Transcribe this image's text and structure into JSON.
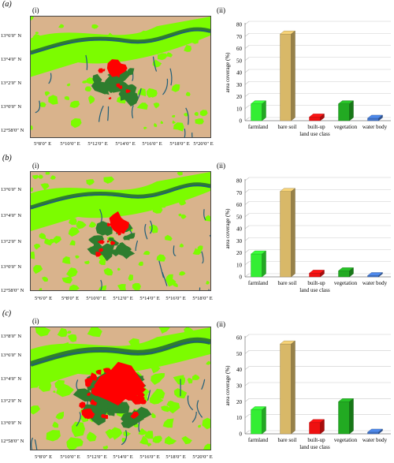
{
  "panels": [
    {
      "label": "(a)",
      "map_label": "(i)",
      "chart_label": "(ii)",
      "lat_labels": [
        "13°6′0″ N",
        "13°4′0″ N",
        "13°2′0″ N",
        "13°0′0″ N",
        "12°58′0″ N"
      ],
      "lon_labels": [
        "5°8′0″ E",
        "5°10′0″ E",
        "5°12′0″ E",
        "5°14′0″ E",
        "5°16′0″ E",
        "5°18′0″ E",
        "5°20′0″ E"
      ]
    },
    {
      "label": "(b)",
      "map_label": "(i)",
      "chart_label": "(ii)",
      "lat_labels": [
        "13°6′0″ N",
        "13°4′0″ N",
        "13°2′0″ N",
        "13°0′0″ N",
        "12°58′0″ N"
      ],
      "lon_labels": [
        "5°6′0″ E",
        "5°8′0″ E",
        "5°10′0″ E",
        "5°12′0″ E",
        "5°14′0″ E",
        "5°16′0″ E",
        "5°18′0″ E"
      ]
    },
    {
      "label": "(c)",
      "map_label": "(i)",
      "chart_label": "(ii)",
      "lat_labels": [
        "13°8′0″ N",
        "13°6′0″ N",
        "13°4′0″ N",
        "13°2′0″ N",
        "13°0′0″ N",
        "12°58′0″ N"
      ],
      "lon_labels": [
        "5°8′0″ E",
        "5°10′0″ E",
        "5°12′0″ E",
        "5°14′0″ E",
        "5°16′0″ E",
        "5°18′0″ E",
        "5°20′0″ E"
      ]
    }
  ],
  "map_colors": {
    "bare_soil": "#d9b38c",
    "farmland": "#7cfc00",
    "vegetation": "#2e7d2e",
    "built_up": "#ff0000",
    "water": "#1f5f7a"
  },
  "chart_data": [
    {
      "type": "bar",
      "categories": [
        "farmland",
        "bare soil",
        "built-up",
        "vegetation",
        "water body"
      ],
      "values": [
        14,
        72,
        3,
        14,
        2
      ],
      "colors": [
        "#33ee33",
        "#d8b868",
        "#ee1111",
        "#22aa22",
        "#4477cc"
      ],
      "xlabel": "land use class",
      "ylabel": "area coverage (%)",
      "ylim": [
        0,
        80
      ],
      "yticks": [
        0,
        10,
        20,
        30,
        40,
        50,
        60,
        70,
        80
      ]
    },
    {
      "type": "bar",
      "categories": [
        "farmland",
        "bare soil",
        "built-up",
        "vegetation",
        "water body"
      ],
      "values": [
        19,
        71,
        3,
        5,
        1
      ],
      "colors": [
        "#33ee33",
        "#d8b868",
        "#ee1111",
        "#22aa22",
        "#4477cc"
      ],
      "xlabel": "land use class",
      "ylabel": "area coverage (%)",
      "ylim": [
        0,
        80
      ],
      "yticks": [
        0,
        10,
        20,
        30,
        40,
        50,
        60,
        70,
        80
      ]
    },
    {
      "type": "bar",
      "categories": [
        "farmland",
        "bare soil",
        "built-up",
        "vegetation",
        "water body"
      ],
      "values": [
        15,
        56,
        7,
        20,
        1
      ],
      "colors": [
        "#33ee33",
        "#d8b868",
        "#ee1111",
        "#22aa22",
        "#4477cc"
      ],
      "xlabel": "land use class",
      "ylabel": "area coverage (%)",
      "ylim": [
        0,
        60
      ],
      "yticks": [
        0,
        10,
        20,
        30,
        40,
        50,
        60
      ]
    }
  ]
}
